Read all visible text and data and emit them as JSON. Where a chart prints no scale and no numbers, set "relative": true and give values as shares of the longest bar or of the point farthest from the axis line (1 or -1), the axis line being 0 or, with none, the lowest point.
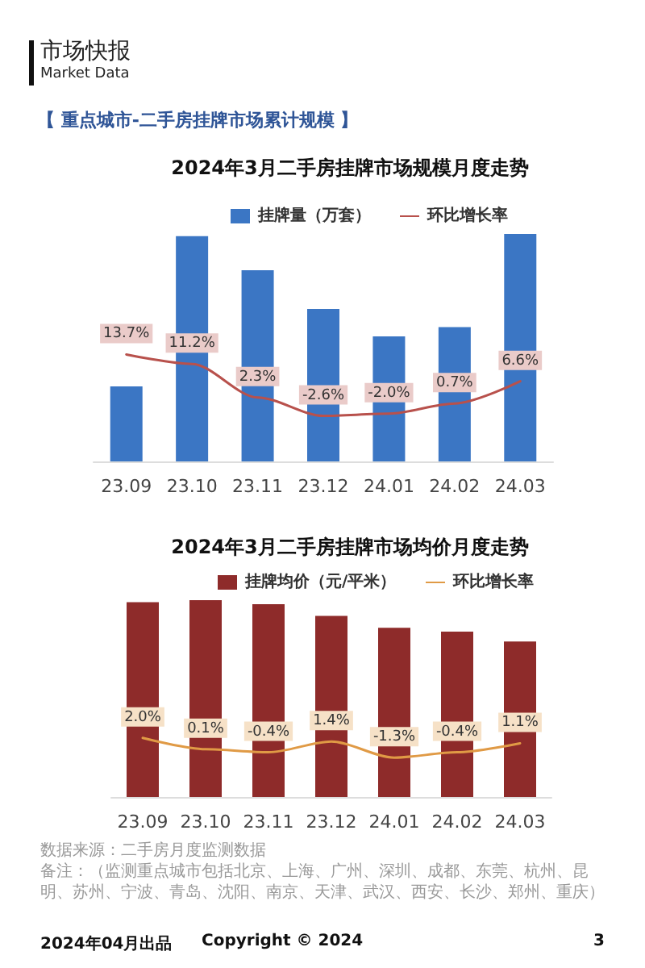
{
  "chart_data": [
    {
      "type": "bar",
      "title": "2024年3月二手房挂牌市场规模月度走势",
      "subtitle": "【 重点城市-二手房挂牌市场累计规模 】",
      "categories": [
        "23.09",
        "23.10",
        "23.11",
        "23.12",
        "24.01",
        "24.02",
        "24.03"
      ],
      "relative": true,
      "legend": "top",
      "series": [
        {
          "name": "挂牌量（万套）",
          "color": "#3b76c4",
          "values": [
            0.33,
            0.99,
            0.84,
            0.67,
            0.55,
            0.59,
            1
          ]
        }
      ],
      "annotations": [
        "市场快报",
        "Market Data"
      ]
    },
    {
      "type": "line",
      "categories": [
        "23.09",
        "23.10",
        "23.11",
        "23.12",
        "24.01",
        "24.02",
        "24.03"
      ],
      "tick_labels": false,
      "legend": "top",
      "marker": "none",
      "series": [
        {
          "name": "环比增长率",
          "color": "#b8514c",
          "values": [
            13.7,
            11.2,
            2.3,
            -2.6,
            -2.0,
            0.7,
            6.6
          ],
          "value_labels": [
            "13.7%",
            "11.2%",
            "2.3%",
            "-2.6%",
            "-2.0%",
            "0.7%",
            "6.6%"
          ]
        }
      ]
    },
    {
      "type": "bar",
      "title": "2024年3月二手房挂牌市场均价月度走势",
      "categories": [
        "23.09",
        "23.10",
        "23.11",
        "23.12",
        "24.01",
        "24.02",
        "24.03"
      ],
      "relative": true,
      "legend": "top",
      "series": [
        {
          "name": "挂牌均价（元/平米）",
          "color": "#8e2b2a",
          "values": [
            0.99,
            1,
            0.98,
            0.92,
            0.86,
            0.84,
            0.79
          ]
        }
      ],
      "annotations": [
        "数据来源：二手房月度监测数据",
        "备注：（监测重点城市包括北京、上海、广州、深圳、成都、东莞、杭州、昆明、苏州、宁波、青岛、沈阳、南京、天津、武汉、西安、长沙、郑州、重庆）",
        "2024年04月出品",
        "Copyright © 2024",
        "3"
      ]
    },
    {
      "type": "line",
      "categories": [
        "23.09",
        "23.10",
        "23.11",
        "23.12",
        "24.01",
        "24.02",
        "24.03"
      ],
      "tick_labels": false,
      "legend": "top",
      "marker": "none",
      "series": [
        {
          "name": "环比增长率",
          "color": "#e09a45",
          "values": [
            2.0,
            0.1,
            -0.4,
            1.4,
            -1.3,
            -0.4,
            1.1
          ],
          "value_labels": [
            "2.0%",
            "0.1%",
            "-0.4%",
            "1.4%",
            "-1.3%",
            "-0.4%",
            "1.1%"
          ]
        }
      ]
    }
  ]
}
